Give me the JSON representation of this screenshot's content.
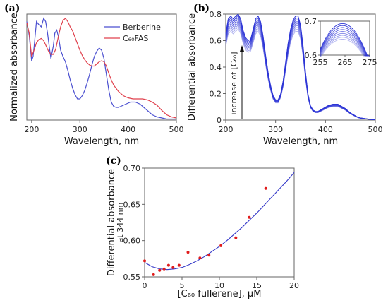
{
  "panels": {
    "a": "(a)",
    "b": "(b)",
    "c": "(c)"
  },
  "colors": {
    "berberine": "#4a4fd0",
    "c60fas": "#e0414d",
    "blue_lines": "#2d35d6",
    "points": "#e01b1b",
    "fit": "#3438c8"
  },
  "chart_data": [
    {
      "id": "a",
      "type": "line",
      "xlabel": "Wavelength, nm",
      "ylabel": "Normalized absorbance",
      "xlim": [
        190,
        500
      ],
      "ylim": [
        0,
        1.0
      ],
      "x_ticks": [
        200,
        300,
        400,
        500
      ],
      "y_ticks": [],
      "legend_position": "top-right",
      "series": [
        {
          "name": "Berberine",
          "color": "#4a4fd0",
          "x": [
            190,
            195,
            200,
            203,
            206,
            210,
            215,
            220,
            225,
            229,
            233,
            237,
            240,
            245,
            248,
            252,
            256,
            260,
            265,
            270,
            275,
            280,
            285,
            290,
            295,
            300,
            305,
            310,
            315,
            320,
            325,
            330,
            335,
            340,
            345,
            350,
            355,
            360,
            365,
            370,
            375,
            380,
            385,
            390,
            395,
            400,
            405,
            410,
            415,
            420,
            425,
            430,
            435,
            440,
            445,
            450,
            455,
            460,
            470,
            480,
            490,
            500
          ],
          "y": [
            0.93,
            0.8,
            0.56,
            0.6,
            0.73,
            0.93,
            0.9,
            0.88,
            0.96,
            0.93,
            0.82,
            0.68,
            0.58,
            0.7,
            0.82,
            0.85,
            0.78,
            0.66,
            0.6,
            0.55,
            0.47,
            0.38,
            0.3,
            0.24,
            0.2,
            0.2,
            0.23,
            0.28,
            0.35,
            0.43,
            0.52,
            0.6,
            0.65,
            0.68,
            0.66,
            0.58,
            0.43,
            0.28,
            0.17,
            0.13,
            0.12,
            0.12,
            0.13,
            0.14,
            0.15,
            0.16,
            0.17,
            0.17,
            0.17,
            0.16,
            0.15,
            0.13,
            0.11,
            0.09,
            0.07,
            0.05,
            0.04,
            0.03,
            0.02,
            0.01,
            0.01,
            0.01
          ]
        },
        {
          "name": "C₆₀FAS",
          "color": "#e0414d",
          "x": [
            190,
            195,
            200,
            205,
            210,
            215,
            220,
            225,
            230,
            235,
            240,
            245,
            250,
            255,
            260,
            265,
            270,
            275,
            280,
            285,
            290,
            295,
            300,
            305,
            310,
            315,
            320,
            325,
            330,
            335,
            340,
            345,
            350,
            355,
            360,
            365,
            370,
            375,
            380,
            390,
            400,
            410,
            420,
            430,
            440,
            450,
            460,
            470,
            480,
            490,
            500
          ],
          "y": [
            0.92,
            0.82,
            0.6,
            0.66,
            0.73,
            0.76,
            0.77,
            0.75,
            0.7,
            0.65,
            0.62,
            0.62,
            0.67,
            0.78,
            0.88,
            0.94,
            0.96,
            0.93,
            0.88,
            0.84,
            0.78,
            0.72,
            0.66,
            0.61,
            0.57,
            0.54,
            0.52,
            0.51,
            0.51,
            0.53,
            0.55,
            0.56,
            0.55,
            0.51,
            0.44,
            0.38,
            0.33,
            0.3,
            0.27,
            0.23,
            0.21,
            0.2,
            0.2,
            0.2,
            0.19,
            0.17,
            0.14,
            0.09,
            0.05,
            0.03,
            0.02
          ]
        }
      ]
    },
    {
      "id": "b",
      "type": "line",
      "xlabel": "Wavelength, nm",
      "ylabel": "Differential absorbance",
      "xlim": [
        200,
        500
      ],
      "ylim": [
        0,
        0.8
      ],
      "x_ticks": [
        200,
        300,
        400,
        500
      ],
      "y_ticks": [
        0,
        0.2,
        0.4,
        0.6,
        0.8
      ],
      "annotation": "increase of [C₆₀]",
      "base_curve": {
        "x": [
          200,
          205,
          210,
          215,
          220,
          225,
          230,
          235,
          240,
          245,
          250,
          255,
          260,
          265,
          270,
          275,
          280,
          285,
          290,
          295,
          300,
          305,
          310,
          315,
          320,
          325,
          330,
          335,
          340,
          345,
          350,
          355,
          360,
          365,
          370,
          375,
          380,
          385,
          390,
          395,
          400,
          405,
          410,
          415,
          420,
          425,
          430,
          435,
          440,
          445,
          450,
          455,
          460,
          465,
          470,
          480,
          490,
          500
        ],
        "y": [
          0.6,
          0.7,
          0.72,
          0.7,
          0.72,
          0.74,
          0.7,
          0.62,
          0.57,
          0.55,
          0.56,
          0.63,
          0.7,
          0.72,
          0.68,
          0.58,
          0.45,
          0.33,
          0.24,
          0.17,
          0.14,
          0.14,
          0.18,
          0.27,
          0.4,
          0.53,
          0.63,
          0.69,
          0.72,
          0.72,
          0.66,
          0.52,
          0.33,
          0.18,
          0.1,
          0.07,
          0.06,
          0.06,
          0.07,
          0.08,
          0.09,
          0.1,
          0.105,
          0.11,
          0.11,
          0.11,
          0.1,
          0.09,
          0.08,
          0.065,
          0.05,
          0.04,
          0.03,
          0.02,
          0.015,
          0.01,
          0.005,
          0.003
        ]
      },
      "curve_scales": [
        0.93,
        0.95,
        0.97,
        0.99,
        1.01,
        1.03,
        1.05,
        1.07,
        1.09
      ],
      "inset": {
        "xlim": [
          255,
          275
        ],
        "ylim": [
          0.6,
          0.7
        ],
        "x_ticks": [
          255,
          265,
          275
        ],
        "y_ticks": [
          0.6,
          0.7
        ]
      }
    },
    {
      "id": "c",
      "type": "scatter",
      "xlabel": "[C₆₀ fullerene], μM",
      "ylabel": "Differential absorbance",
      "ylabel_sub": "at 344 nm",
      "xlim": [
        0,
        20
      ],
      "ylim": [
        0.55,
        0.7
      ],
      "x_ticks": [
        0,
        5,
        10,
        15,
        20
      ],
      "y_ticks": [
        0.55,
        0.6,
        0.65,
        0.7
      ],
      "points": {
        "x": [
          0,
          1.2,
          2.0,
          2.6,
          3.2,
          3.8,
          4.6,
          5.8,
          7.4,
          8.6,
          10.2,
          12.2,
          14.0,
          16.2
        ],
        "y": [
          0.572,
          0.553,
          0.559,
          0.561,
          0.566,
          0.563,
          0.566,
          0.584,
          0.576,
          0.58,
          0.593,
          0.604,
          0.632,
          0.672
        ]
      },
      "fit": {
        "x": [
          0,
          1,
          2,
          3,
          4,
          5,
          6,
          7,
          8,
          9,
          10,
          11,
          12,
          13,
          14,
          15,
          16,
          17,
          18,
          19,
          20
        ],
        "y": [
          0.57,
          0.564,
          0.561,
          0.56,
          0.561,
          0.563,
          0.567,
          0.572,
          0.578,
          0.585,
          0.592,
          0.6,
          0.609,
          0.618,
          0.628,
          0.638,
          0.649,
          0.66,
          0.671,
          0.682,
          0.694
        ]
      }
    }
  ]
}
